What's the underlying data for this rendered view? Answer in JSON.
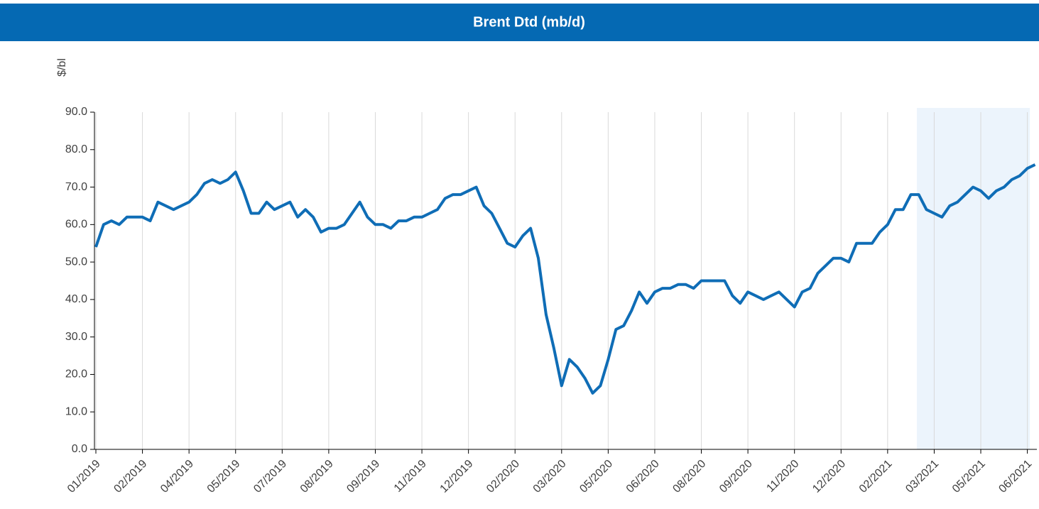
{
  "chart_data": {
    "type": "line",
    "title": "Brent Dtd (mb/d)",
    "y_label": "$/bl",
    "color": "#0f6db6",
    "grid": true,
    "ylim": [
      0,
      90
    ],
    "yticks": [
      {
        "value": 0,
        "label": "0.0"
      },
      {
        "value": 10,
        "label": "10.0"
      },
      {
        "value": 20,
        "label": "20.0"
      },
      {
        "value": 30,
        "label": "30.0"
      },
      {
        "value": 40,
        "label": "40.0"
      },
      {
        "value": 50,
        "label": "50.0"
      },
      {
        "value": 60,
        "label": "60.0"
      },
      {
        "value": 70,
        "label": "70.0"
      },
      {
        "value": 80,
        "label": "80.0"
      },
      {
        "value": 90,
        "label": "90.0"
      }
    ],
    "categories": [
      "01/2019",
      null,
      null,
      null,
      null,
      null,
      "02/2019",
      null,
      null,
      null,
      null,
      null,
      "04/2019",
      null,
      null,
      null,
      null,
      null,
      "05/2019",
      null,
      null,
      null,
      null,
      null,
      "07/2019",
      null,
      null,
      null,
      null,
      null,
      "08/2019",
      null,
      null,
      null,
      null,
      null,
      "09/2019",
      null,
      null,
      null,
      null,
      null,
      "11/2019",
      null,
      null,
      null,
      null,
      null,
      "12/2019",
      null,
      null,
      null,
      null,
      null,
      "02/2020",
      null,
      null,
      null,
      null,
      null,
      "03/2020",
      null,
      null,
      null,
      null,
      null,
      "05/2020",
      null,
      null,
      null,
      null,
      null,
      "06/2020",
      null,
      null,
      null,
      null,
      null,
      "08/2020",
      null,
      null,
      null,
      null,
      null,
      "09/2020",
      null,
      null,
      null,
      null,
      null,
      "11/2020",
      null,
      null,
      null,
      null,
      null,
      "12/2020",
      null,
      null,
      null,
      null,
      null,
      "02/2021",
      null,
      null,
      null,
      null,
      null,
      "03/2021",
      null,
      null,
      null,
      null,
      null,
      "05/2021",
      null,
      null,
      null,
      null,
      null,
      "06/2021",
      null
    ],
    "values": [
      54,
      60,
      61,
      60,
      62,
      62,
      62,
      61,
      66,
      65,
      64,
      65,
      66,
      68,
      71,
      72,
      71,
      72,
      74,
      69,
      63,
      63,
      66,
      64,
      65,
      66,
      62,
      64,
      62,
      58,
      59,
      59,
      60,
      63,
      66,
      62,
      60,
      60,
      59,
      61,
      61,
      62,
      62,
      63,
      64,
      67,
      68,
      68,
      69,
      70,
      65,
      63,
      59,
      55,
      54,
      57,
      59,
      51,
      36,
      27,
      17,
      24,
      22,
      19,
      15,
      17,
      24,
      32,
      33,
      37,
      42,
      39,
      42,
      43,
      43,
      44,
      44,
      43,
      45,
      45,
      45,
      45,
      41,
      39,
      42,
      41,
      40,
      41,
      42,
      40,
      38,
      42,
      43,
      47,
      49,
      51,
      51,
      50,
      55,
      55,
      55,
      58,
      60,
      64,
      64,
      68,
      68,
      64,
      63,
      62,
      65,
      66,
      68,
      70,
      69,
      67,
      69,
      70,
      72,
      73,
      75,
      76
    ]
  }
}
